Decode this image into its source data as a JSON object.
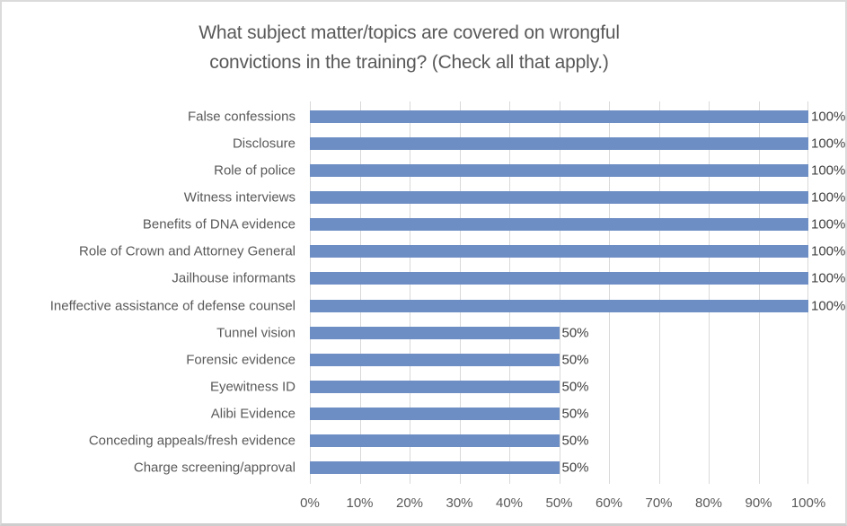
{
  "chart_data": {
    "type": "bar",
    "orientation": "horizontal",
    "title": "What subject matter/topics are covered on wrongful convictions in the training? (Check all that apply.)",
    "title_lines": [
      "What subject matter/topics are covered on wrongful",
      "convictions in the training? (Check all that apply.)"
    ],
    "categories": [
      "False confessions",
      "Disclosure",
      "Role of police",
      "Witness interviews",
      "Benefits of DNA evidence",
      "Role of Crown and Attorney General",
      "Jailhouse informants",
      "Ineffective assistance of defense counsel",
      "Tunnel vision",
      "Forensic evidence",
      "Eyewitness ID",
      "Alibi Evidence",
      "Conceding appeals/fresh evidence",
      "Charge screening/approval"
    ],
    "values": [
      100,
      100,
      100,
      100,
      100,
      100,
      100,
      100,
      50,
      50,
      50,
      50,
      50,
      50
    ],
    "data_labels": [
      "100%",
      "100%",
      "100%",
      "100%",
      "100%",
      "100%",
      "100%",
      "100%",
      "50%",
      "50%",
      "50%",
      "50%",
      "50%",
      "50%"
    ],
    "xlabel": "",
    "ylabel": "",
    "xlim": [
      0,
      100
    ],
    "x_tick_labels": [
      "0%",
      "10%",
      "20%",
      "30%",
      "40%",
      "50%",
      "60%",
      "70%",
      "80%",
      "90%",
      "100%"
    ],
    "grid": "vertical-major",
    "legend": "none",
    "colors": {
      "bar": "#6d8ec4",
      "gridline": "#d9d9d9",
      "title_text": "#595959",
      "axis_text": "#595959",
      "category_text": "#595959",
      "data_label_text": "#404040",
      "background": "#ffffff",
      "border": "#dbdbdb"
    }
  }
}
